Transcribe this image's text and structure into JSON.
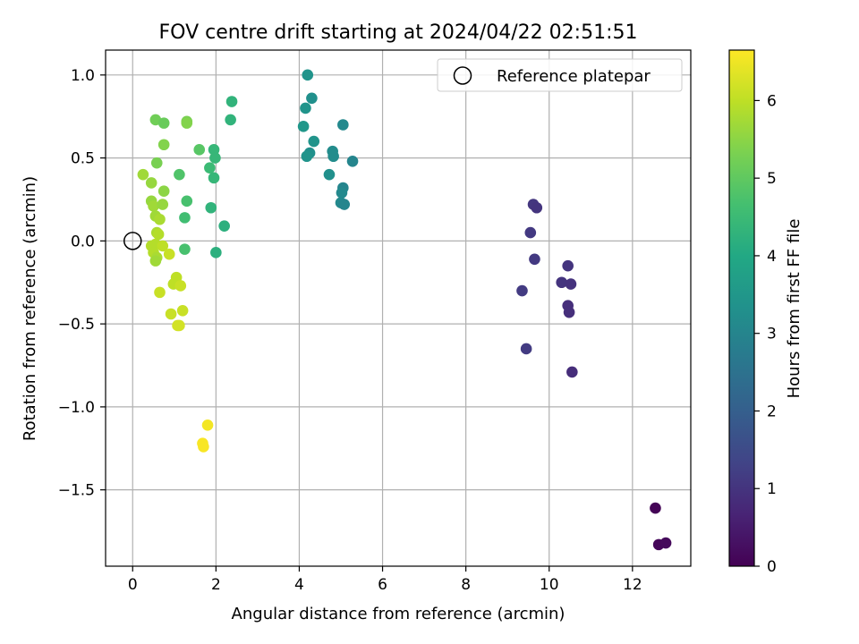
{
  "chart_data": {
    "type": "scatter",
    "title": "FOV centre drift starting at 2024/04/22 02:51:51",
    "xlabel": "Angular distance from reference (arcmin)",
    "ylabel": "Rotation from reference (arcmin)",
    "xlim": [
      -0.65,
      13.4
    ],
    "ylim": [
      -1.96,
      1.15
    ],
    "xticks": [
      0,
      2,
      4,
      6,
      8,
      10,
      12
    ],
    "xtick_labels": [
      "0",
      "2",
      "4",
      "6",
      "8",
      "10",
      "12"
    ],
    "yticks": [
      -1.5,
      -1.0,
      -0.5,
      0.0,
      0.5,
      1.0
    ],
    "ytick_labels": [
      "−1.5",
      "−1.0",
      "−0.5",
      "0.0",
      "0.5",
      "1.0"
    ],
    "grid": true,
    "legend": {
      "position": "upper-right",
      "label": "Reference platepar"
    },
    "reference_point": {
      "x": 0,
      "y": 0
    },
    "colorbar": {
      "label": "Hours from first FF file",
      "min": 0,
      "max": 6.65,
      "ticks": [
        0,
        1,
        2,
        3,
        4,
        5,
        6
      ],
      "tick_labels": [
        "0",
        "1",
        "2",
        "3",
        "4",
        "5",
        "6"
      ],
      "colormap": "viridis"
    },
    "points": [
      {
        "x": 12.55,
        "y": -1.61,
        "h": 0.05
      },
      {
        "x": 12.63,
        "y": -1.83,
        "h": 0.1
      },
      {
        "x": 12.8,
        "y": -1.82,
        "h": 0.15
      },
      {
        "x": 9.62,
        "y": 0.22,
        "h": 1.05
      },
      {
        "x": 9.7,
        "y": 0.2,
        "h": 1.0
      },
      {
        "x": 9.55,
        "y": 0.05,
        "h": 1.1
      },
      {
        "x": 9.65,
        "y": -0.11,
        "h": 1.1
      },
      {
        "x": 9.35,
        "y": -0.3,
        "h": 1.15
      },
      {
        "x": 9.45,
        "y": -0.65,
        "h": 1.15
      },
      {
        "x": 10.3,
        "y": -0.25,
        "h": 1.0
      },
      {
        "x": 10.45,
        "y": -0.15,
        "h": 1.0
      },
      {
        "x": 10.52,
        "y": -0.26,
        "h": 0.95
      },
      {
        "x": 10.45,
        "y": -0.39,
        "h": 0.9
      },
      {
        "x": 10.48,
        "y": -0.43,
        "h": 0.9
      },
      {
        "x": 10.55,
        "y": -0.79,
        "h": 0.85
      },
      {
        "x": 4.2,
        "y": 1.0,
        "h": 3.4
      },
      {
        "x": 4.3,
        "y": 0.86,
        "h": 3.3
      },
      {
        "x": 4.15,
        "y": 0.8,
        "h": 3.4
      },
      {
        "x": 4.1,
        "y": 0.69,
        "h": 3.5
      },
      {
        "x": 4.35,
        "y": 0.6,
        "h": 3.4
      },
      {
        "x": 4.25,
        "y": 0.53,
        "h": 3.3
      },
      {
        "x": 4.18,
        "y": 0.51,
        "h": 3.4
      },
      {
        "x": 4.8,
        "y": 0.54,
        "h": 3.2
      },
      {
        "x": 4.82,
        "y": 0.51,
        "h": 3.2
      },
      {
        "x": 4.72,
        "y": 0.4,
        "h": 3.3
      },
      {
        "x": 5.05,
        "y": 0.7,
        "h": 3.1
      },
      {
        "x": 5.28,
        "y": 0.48,
        "h": 3.0
      },
      {
        "x": 5.05,
        "y": 0.32,
        "h": 3.0
      },
      {
        "x": 5.02,
        "y": 0.29,
        "h": 3.1
      },
      {
        "x": 5.0,
        "y": 0.23,
        "h": 3.1
      },
      {
        "x": 5.08,
        "y": 0.22,
        "h": 3.0
      },
      {
        "x": 2.38,
        "y": 0.84,
        "h": 4.3
      },
      {
        "x": 2.35,
        "y": 0.73,
        "h": 4.3
      },
      {
        "x": 1.95,
        "y": 0.55,
        "h": 4.4
      },
      {
        "x": 1.98,
        "y": 0.5,
        "h": 4.4
      },
      {
        "x": 1.85,
        "y": 0.44,
        "h": 4.5
      },
      {
        "x": 1.95,
        "y": 0.38,
        "h": 4.4
      },
      {
        "x": 1.88,
        "y": 0.2,
        "h": 4.3
      },
      {
        "x": 2.2,
        "y": 0.09,
        "h": 4.2
      },
      {
        "x": 2.0,
        "y": -0.07,
        "h": 4.2
      },
      {
        "x": 1.6,
        "y": 0.55,
        "h": 4.9
      },
      {
        "x": 1.12,
        "y": 0.4,
        "h": 4.8
      },
      {
        "x": 1.3,
        "y": 0.24,
        "h": 4.7
      },
      {
        "x": 1.25,
        "y": 0.14,
        "h": 4.6
      },
      {
        "x": 1.25,
        "y": -0.05,
        "h": 4.7
      },
      {
        "x": 0.55,
        "y": 0.73,
        "h": 5.2
      },
      {
        "x": 0.75,
        "y": 0.71,
        "h": 5.1
      },
      {
        "x": 1.3,
        "y": 0.72,
        "h": 5.3
      },
      {
        "x": 1.3,
        "y": 0.71,
        "h": 5.4
      },
      {
        "x": 0.75,
        "y": 0.58,
        "h": 5.4
      },
      {
        "x": 0.58,
        "y": 0.47,
        "h": 5.3
      },
      {
        "x": 0.25,
        "y": 0.4,
        "h": 5.7
      },
      {
        "x": 0.45,
        "y": 0.35,
        "h": 5.6
      },
      {
        "x": 0.75,
        "y": 0.3,
        "h": 5.5
      },
      {
        "x": 0.45,
        "y": 0.24,
        "h": 5.6
      },
      {
        "x": 0.5,
        "y": 0.21,
        "h": 5.7
      },
      {
        "x": 0.72,
        "y": 0.22,
        "h": 5.6
      },
      {
        "x": 0.55,
        "y": 0.15,
        "h": 5.7
      },
      {
        "x": 0.65,
        "y": 0.13,
        "h": 5.8
      },
      {
        "x": 0.58,
        "y": 0.05,
        "h": 5.8
      },
      {
        "x": 0.62,
        "y": 0.04,
        "h": 5.9
      },
      {
        "x": 0.55,
        "y": -0.02,
        "h": 5.9
      },
      {
        "x": 0.45,
        "y": -0.03,
        "h": 5.9
      },
      {
        "x": 0.72,
        "y": -0.03,
        "h": 6.0
      },
      {
        "x": 0.5,
        "y": -0.07,
        "h": 5.9
      },
      {
        "x": 0.58,
        "y": -0.1,
        "h": 5.8
      },
      {
        "x": 0.55,
        "y": -0.12,
        "h": 5.7
      },
      {
        "x": 0.88,
        "y": -0.08,
        "h": 6.1
      },
      {
        "x": 1.05,
        "y": -0.22,
        "h": 6.0
      },
      {
        "x": 0.98,
        "y": -0.26,
        "h": 6.0
      },
      {
        "x": 1.15,
        "y": -0.27,
        "h": 6.1
      },
      {
        "x": 0.65,
        "y": -0.31,
        "h": 6.1
      },
      {
        "x": 1.2,
        "y": -0.42,
        "h": 6.1
      },
      {
        "x": 0.92,
        "y": -0.44,
        "h": 6.1
      },
      {
        "x": 1.08,
        "y": -0.51,
        "h": 6.2
      },
      {
        "x": 1.12,
        "y": -0.51,
        "h": 6.2
      },
      {
        "x": 1.8,
        "y": -1.11,
        "h": 6.55
      },
      {
        "x": 1.68,
        "y": -1.22,
        "h": 6.6
      },
      {
        "x": 1.7,
        "y": -1.24,
        "h": 6.6
      }
    ]
  }
}
